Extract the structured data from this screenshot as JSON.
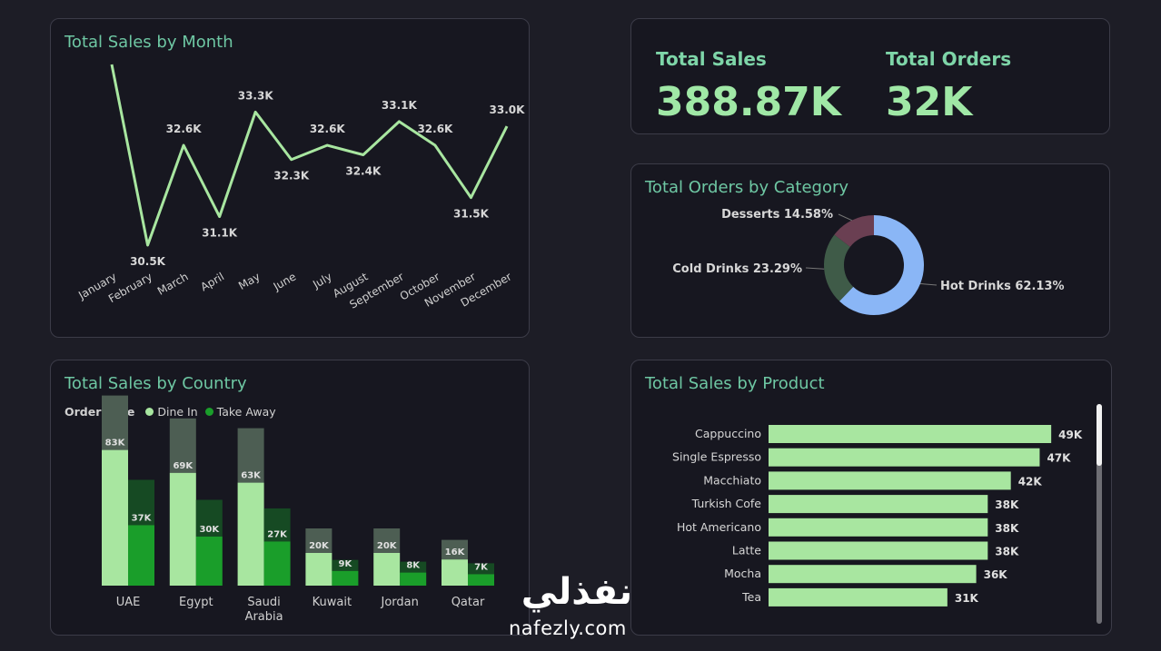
{
  "kpi": {
    "total_sales_label": "Total Sales",
    "total_sales_value": "388.87K",
    "total_orders_label": "Total Orders",
    "total_orders_value": "32K"
  },
  "month_chart": {
    "title": "Total Sales by Month"
  },
  "category_chart": {
    "title": "Total Orders by Category"
  },
  "country_chart": {
    "title": "Total Sales by Country",
    "legend_title": "Order Type"
  },
  "product_chart": {
    "title": "Total Sales by Product"
  },
  "watermark": {
    "arabic": "نفذلي",
    "latin": "nafezly.com"
  },
  "chart_data": [
    {
      "id": "month",
      "type": "line",
      "title": "Total Sales by Month",
      "categories": [
        "January",
        "February",
        "March",
        "April",
        "May",
        "June",
        "July",
        "August",
        "September",
        "October",
        "November",
        "December"
      ],
      "values": [
        34.3,
        30.5,
        32.6,
        31.1,
        33.3,
        32.3,
        32.6,
        32.4,
        33.1,
        32.6,
        31.5,
        33.0
      ],
      "labels": [
        "",
        "30.5K",
        "32.6K",
        "31.1K",
        "33.3K",
        "32.3K",
        "32.6K",
        "32.4K",
        "33.1K",
        "32.6K",
        "31.5K",
        "33.0K"
      ],
      "color": "#a8e6a0"
    },
    {
      "id": "category",
      "type": "pie",
      "title": "Total Orders by Category",
      "slices": [
        {
          "label": "Hot Drinks",
          "value": 62.13,
          "text": "Hot Drinks 62.13%",
          "color": "#8ab6f6"
        },
        {
          "label": "Cold Drinks",
          "value": 23.29,
          "text": "Cold Drinks 23.29%",
          "color": "#3f5b48"
        },
        {
          "label": "Desserts",
          "value": 14.58,
          "text": "Desserts 14.58%",
          "color": "#6a3f52"
        }
      ]
    },
    {
      "id": "country",
      "type": "bar",
      "title": "Total Sales by Country",
      "categories": [
        "UAE",
        "Egypt",
        "Saudi Arabia",
        "Kuwait",
        "Jordan",
        "Qatar"
      ],
      "series": [
        {
          "name": "Dine In",
          "values": [
            83,
            69,
            63,
            20,
            20,
            16
          ],
          "labels": [
            "83K",
            "69K",
            "63K",
            "20K",
            "20K",
            "16K"
          ],
          "color": "#a8e6a0",
          "shadow": "#4d5e53"
        },
        {
          "name": "Take Away",
          "values": [
            37,
            30,
            27,
            9,
            8,
            7
          ],
          "labels": [
            "37K",
            "30K",
            "27K",
            "9K",
            "8K",
            "7K"
          ],
          "color": "#1a9e2a",
          "shadow": "#164a23"
        }
      ],
      "unit": "K"
    },
    {
      "id": "product",
      "type": "bar",
      "orientation": "horizontal",
      "title": "Total Sales by Product",
      "categories": [
        "Cappuccino",
        "Single Espresso",
        "Macchiato",
        "Turkish Cofe",
        "Hot Americano",
        "Latte",
        "Mocha",
        "Tea"
      ],
      "values": [
        49,
        47,
        42,
        38,
        38,
        38,
        36,
        31
      ],
      "labels": [
        "49K",
        "47K",
        "42K",
        "38K",
        "38K",
        "38K",
        "36K",
        "31K"
      ],
      "color": "#a8e6a0"
    }
  ]
}
